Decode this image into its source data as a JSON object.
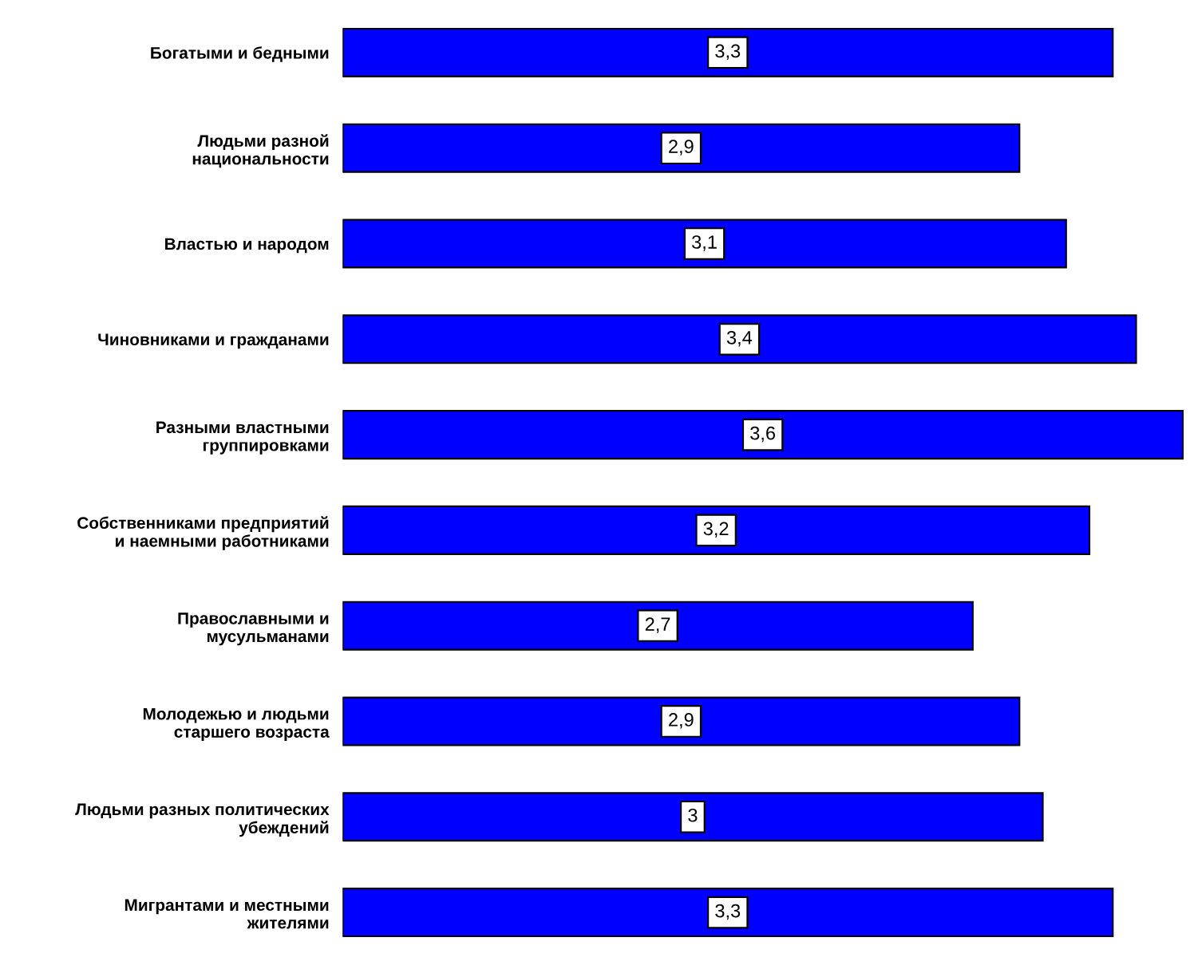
{
  "chart_data": {
    "type": "bar",
    "orientation": "horizontal",
    "categories": [
      "Богатыми и бедными",
      "Людьми разной\nнациональности",
      "Властью и народом",
      "Чиновниками и гражданами",
      "Разными властными\nгруппировками",
      "Собственниками предприятий\nи наемными работниками",
      "Православными и\nмусульманами",
      "Молодежью и людьми\nстаршего возраста",
      "Людьми разных политических\nубеждений",
      "Мигрантами и местными\nжителями"
    ],
    "values": [
      3.3,
      2.9,
      3.1,
      3.4,
      3.6,
      3.2,
      2.7,
      2.9,
      3,
      3.3
    ],
    "value_labels": [
      "3,3",
      "2,9",
      "3,1",
      "3,4",
      "3,6",
      "3,2",
      "2,7",
      "2,9",
      "3",
      "3,3"
    ],
    "color": "#0000ff",
    "grid": false,
    "legend": false
  }
}
